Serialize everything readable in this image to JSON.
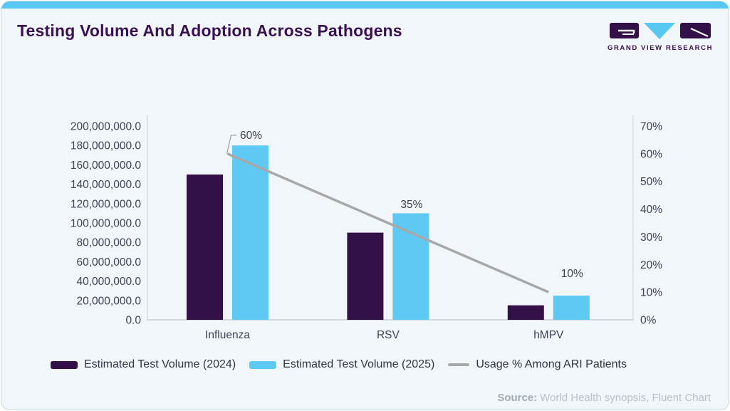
{
  "header": {
    "title": "Testing Volume And Adoption Across Pathogens",
    "brand": "GRAND VIEW RESEARCH"
  },
  "theme": {
    "accent_strip": "#56c8f2",
    "card_background": "#f0f6fa",
    "title_color": "#3a1053"
  },
  "chart_data": {
    "type": "bar",
    "subtype": "grouped-bars-with-line",
    "categories": [
      "Influenza",
      "RSV",
      "hMPV"
    ],
    "series": [
      {
        "name": "Estimated Test Volume (2024)",
        "type": "bar",
        "color": "#331148",
        "values": [
          150000000,
          90000000,
          15000000
        ]
      },
      {
        "name": "Estimated Test Volume (2025)",
        "type": "bar",
        "color": "#5ec9f3",
        "values": [
          180000000,
          110000000,
          25000000
        ]
      },
      {
        "name": "Usage % Among ARI Patients",
        "type": "line",
        "color": "#a8a8a8",
        "values": [
          60,
          35,
          10
        ],
        "labels": [
          "60%",
          "35%",
          "10%"
        ]
      }
    ],
    "left_axis": {
      "min": 0,
      "max": 200000000,
      "tick_step": 20000000,
      "tick_labels": [
        "200,000,000.0",
        "180,000,000.0",
        "160,000,000.0",
        "140,000,000.0",
        "120,000,000.0",
        "100,000,000.0",
        "80,000,000.0",
        "60,000,000.0",
        "40,000,000.0",
        "20,000,000.0",
        "0.0"
      ]
    },
    "right_axis": {
      "min": 0,
      "max": 70,
      "tick_step": 10,
      "tick_labels": [
        "70%",
        "60%",
        "50%",
        "40%",
        "30%",
        "20%",
        "10%",
        "0%"
      ]
    },
    "grid": false,
    "legend_position": "bottom"
  },
  "footer": {
    "source_label": "Source:",
    "source_text": "World Health synopsis, Fluent Chart"
  }
}
